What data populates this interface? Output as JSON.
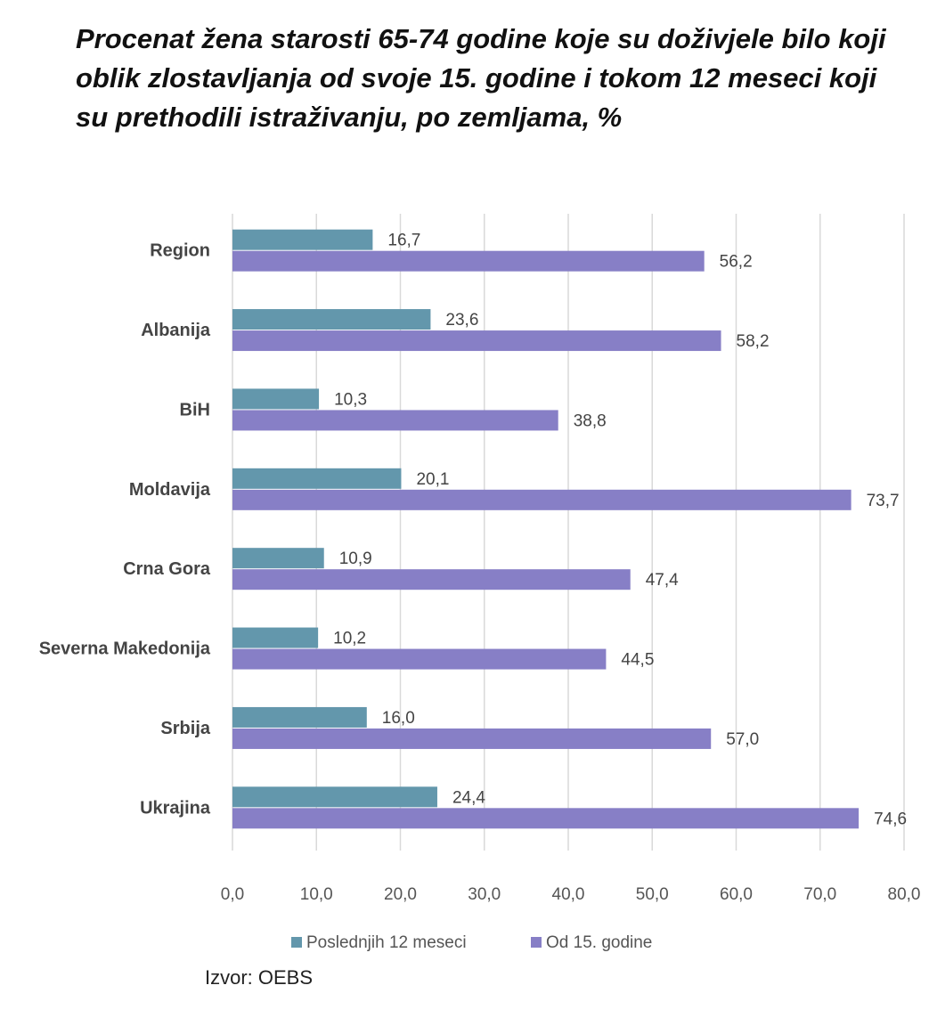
{
  "chart_data": {
    "type": "bar",
    "orientation": "horizontal",
    "title": "Procenat žena starosti 65-74 godine koje su doživjele bilo koji oblik zlostavljanja od svoje 15. godine i tokom 12 meseci koji su prethodili istraživanju, po zemljama, %",
    "categories": [
      "Region",
      "Albanija",
      "BiH",
      "Moldavija",
      "Crna Gora",
      "Severna Makedonija",
      "Srbija",
      "Ukrajina"
    ],
    "series": [
      {
        "name": "Poslednjih 12 meseci",
        "color": "#6397ac",
        "values": [
          16.7,
          23.6,
          10.3,
          20.1,
          10.9,
          10.2,
          16.0,
          24.4
        ]
      },
      {
        "name": "Od 15. godine",
        "color": "#877fc6",
        "values": [
          56.2,
          58.2,
          38.8,
          73.7,
          47.4,
          44.5,
          57.0,
          74.6
        ]
      }
    ],
    "xlim": [
      0,
      80
    ],
    "xticks": [
      "0,0",
      "10,0",
      "20,0",
      "30,0",
      "40,0",
      "50,0",
      "60,0",
      "70,0",
      "80,0"
    ],
    "grid": true,
    "legend": "bottom",
    "xlabel": "",
    "ylabel": ""
  },
  "source": "Izvor: OEBS"
}
